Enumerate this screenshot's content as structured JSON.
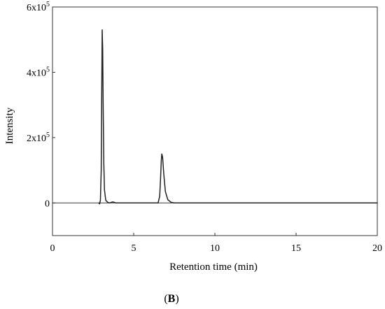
{
  "chart_data": {
    "type": "line",
    "title": "",
    "xlabel": "Retention time (min)",
    "ylabel": "Intensity",
    "xlim": [
      0,
      20
    ],
    "ylim": [
      -100000,
      600000
    ],
    "x_ticks": [
      {
        "value": 0,
        "label": "0"
      },
      {
        "value": 5,
        "label": "5"
      },
      {
        "value": 10,
        "label": "10"
      },
      {
        "value": 15,
        "label": "15"
      },
      {
        "value": 20,
        "label": "20"
      }
    ],
    "y_ticks": [
      {
        "value": 0,
        "base": "0",
        "exp": ""
      },
      {
        "value": 200000,
        "base": "2x10",
        "exp": "5"
      },
      {
        "value": 400000,
        "base": "4x10",
        "exp": "5"
      },
      {
        "value": 600000,
        "base": "6x10",
        "exp": "5"
      }
    ],
    "grid": false,
    "legend": "none",
    "series": [
      {
        "color": "#222222",
        "points": [
          [
            2.85,
            0
          ],
          [
            2.9,
            -3000
          ],
          [
            2.95,
            8000
          ],
          [
            3.0,
            100000
          ],
          [
            3.03,
            330000
          ],
          [
            3.06,
            530000
          ],
          [
            3.09,
            470000
          ],
          [
            3.12,
            300000
          ],
          [
            3.16,
            120000
          ],
          [
            3.2,
            40000
          ],
          [
            3.28,
            8000
          ],
          [
            3.4,
            2000
          ],
          [
            3.5,
            0
          ],
          [
            3.7,
            3000
          ],
          [
            3.8,
            2000
          ],
          [
            3.9,
            0
          ],
          [
            6.5,
            0
          ],
          [
            6.6,
            20000
          ],
          [
            6.65,
            70000
          ],
          [
            6.7,
            130000
          ],
          [
            6.73,
            150000
          ],
          [
            6.78,
            140000
          ],
          [
            6.85,
            90000
          ],
          [
            6.95,
            35000
          ],
          [
            7.1,
            10000
          ],
          [
            7.3,
            2000
          ],
          [
            7.5,
            0
          ],
          [
            20.0,
            0
          ]
        ]
      }
    ]
  },
  "panel_label": {
    "open": "(",
    "letter": "B",
    "close": ")"
  }
}
